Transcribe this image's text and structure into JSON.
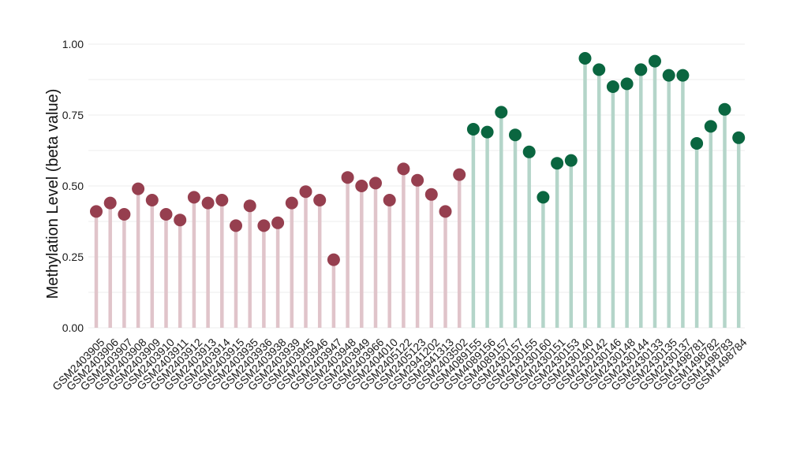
{
  "chart_data": {
    "type": "lollipop",
    "ylabel": "Methylation Level (beta value)",
    "xlabel": "",
    "ylim": [
      0,
      1.0
    ],
    "yticks": [
      0.0,
      0.25,
      0.5,
      0.75,
      1.0
    ],
    "ytick_labels": [
      "0.00",
      "0.25",
      "0.50",
      "0.75",
      "1.00"
    ],
    "grid": true,
    "categories": [
      "GSM2403905",
      "GSM2403906",
      "GSM2403907",
      "GSM2403908",
      "GSM2403909",
      "GSM2403910",
      "GSM2403911",
      "GSM2403912",
      "GSM2403913",
      "GSM2403914",
      "GSM2403915",
      "GSM2403935",
      "GSM2403936",
      "GSM2403938",
      "GSM2403939",
      "GSM2403945",
      "GSM2403946",
      "GSM2403947",
      "GSM2403948",
      "GSM2403949",
      "GSM2403966",
      "GSM2404010",
      "GSM2405122",
      "GSM2405123",
      "GSM2941202",
      "GSM2941313",
      "GSM2403502",
      "GSM4089155",
      "GSM4089156",
      "GSM4089157",
      "GSM2430157",
      "GSM2430155",
      "GSM2430160",
      "GSM2430151",
      "GSM2430153",
      "GSM2430140",
      "GSM2430142",
      "GSM2430146",
      "GSM2430148",
      "GSM2430144",
      "GSM2430133",
      "GSM2430135",
      "GSM2430137",
      "GSM1498781",
      "GSM1498782",
      "GSM1498783",
      "GSM1498784"
    ],
    "values": [
      0.41,
      0.44,
      0.4,
      0.49,
      0.45,
      0.4,
      0.38,
      0.46,
      0.44,
      0.45,
      0.36,
      0.43,
      0.36,
      0.37,
      0.44,
      0.48,
      0.45,
      0.24,
      0.53,
      0.5,
      0.51,
      0.45,
      0.56,
      0.52,
      0.47,
      0.41,
      0.54,
      0.7,
      0.69,
      0.76,
      0.68,
      0.62,
      0.46,
      0.58,
      0.59,
      0.95,
      0.91,
      0.85,
      0.86,
      0.91,
      0.94,
      0.89,
      0.89,
      0.65,
      0.71,
      0.77,
      0.67
    ],
    "groups": [
      "red",
      "red",
      "red",
      "red",
      "red",
      "red",
      "red",
      "red",
      "red",
      "red",
      "red",
      "red",
      "red",
      "red",
      "red",
      "red",
      "red",
      "red",
      "red",
      "red",
      "red",
      "red",
      "red",
      "red",
      "red",
      "red",
      "red",
      "green",
      "green",
      "green",
      "green",
      "green",
      "green",
      "green",
      "green",
      "green",
      "green",
      "green",
      "green",
      "green",
      "green",
      "green",
      "green",
      "green",
      "green",
      "green",
      "green"
    ],
    "colors": {
      "red_dot": "#963f4f",
      "red_stem": "#e0c4ca",
      "green_dot": "#0a6640",
      "green_stem": "#b4d5c9",
      "grid": "#ececec"
    }
  }
}
